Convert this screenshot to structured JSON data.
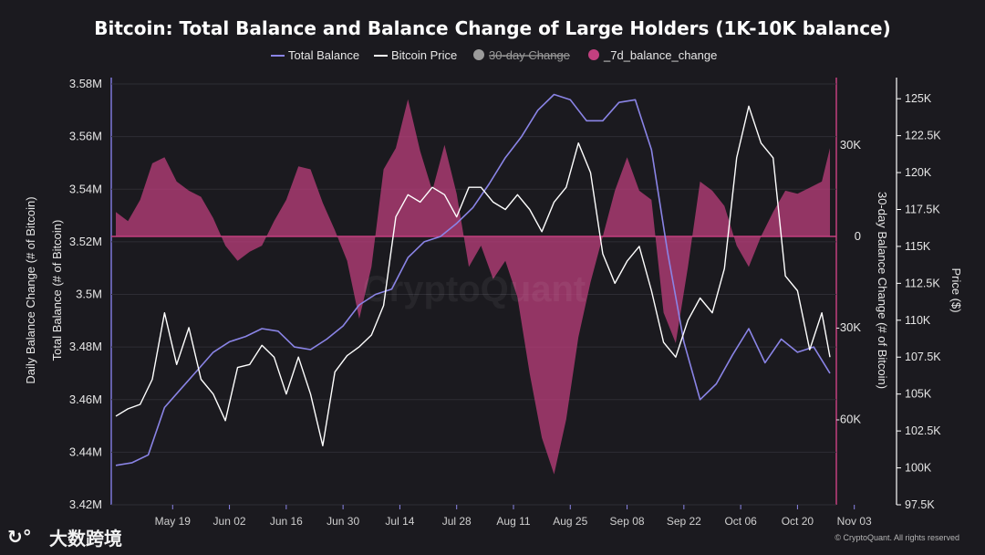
{
  "chart_data": {
    "type": "line",
    "title": "Bitcoin: Total Balance and Balance Change of Large Holders (1K-10K balance)",
    "legend": [
      {
        "name": "Total Balance",
        "color": "#8a84e6",
        "shape": "line",
        "hidden": false
      },
      {
        "name": "Bitcoin Price",
        "color": "#ffffff",
        "shape": "line",
        "hidden": false
      },
      {
        "name": "30-day Change",
        "color": "#9b9b9b",
        "shape": "dot",
        "hidden": true
      },
      {
        "name": "_7d_balance_change",
        "color": "#c2407f",
        "shape": "dot",
        "hidden": false
      }
    ],
    "x_tick_labels": [
      "May 19",
      "Jun 02",
      "Jun 16",
      "Jun 30",
      "Jul 14",
      "Jul 28",
      "Aug 11",
      "Aug 25",
      "Sep 08",
      "Sep 22",
      "Oct 06",
      "Oct 20",
      "Nov 03"
    ],
    "y_left": {
      "label": "Total Balance (# of Bitcoin)",
      "outer_label": "Daily Balance Change (# of Bitcoin)",
      "ticks": [
        "3.58M",
        "3.56M",
        "3.54M",
        "3.52M",
        "3.5M",
        "3.48M",
        "3.46M",
        "3.44M",
        "3.42M"
      ],
      "range": [
        3420000,
        3580000
      ]
    },
    "y_mid": {
      "label": "30-day Balance Change (# of Bitcoin)",
      "ticks": [
        "30K",
        "0",
        "-30K",
        "-60K"
      ],
      "range": [
        -88000,
        50000
      ]
    },
    "y_right": {
      "label": "Price ($)",
      "ticks": [
        "125K",
        "122.5K",
        "120K",
        "117.5K",
        "115K",
        "112.5K",
        "110K",
        "107.5K",
        "105K",
        "102.5K",
        "100K",
        "97.5K"
      ],
      "range": [
        97500,
        126000
      ]
    },
    "series": [
      {
        "name": "Total Balance",
        "color": "#8a84e6",
        "x_days": [
          0,
          4,
          8,
          12,
          16,
          20,
          24,
          28,
          32,
          36,
          40,
          44,
          48,
          52,
          56,
          60,
          64,
          68,
          72,
          76,
          80,
          84,
          88,
          92,
          96,
          100,
          104,
          108,
          112,
          116,
          120,
          124,
          128,
          132,
          136,
          140,
          144,
          148,
          152,
          156,
          160,
          164,
          168,
          172,
          176
        ],
        "values": [
          3435000,
          3436000,
          3439000,
          3457000,
          3464000,
          3471000,
          3478000,
          3482000,
          3484000,
          3487000,
          3486000,
          3480000,
          3479000,
          3483000,
          3488000,
          3496000,
          3500000,
          3502000,
          3514000,
          3520000,
          3522000,
          3527000,
          3533000,
          3542000,
          3552000,
          3560000,
          3570000,
          3576000,
          3574000,
          3566000,
          3566000,
          3573000,
          3574000,
          3555000,
          3516000,
          3482000,
          3460000,
          3466000,
          3477000,
          3487000,
          3474000,
          3483000,
          3478000,
          3480000,
          3470000
        ]
      },
      {
        "name": "Bitcoin Price",
        "color": "#ffffff",
        "x_days": [
          0,
          3,
          6,
          9,
          12,
          15,
          18,
          21,
          24,
          27,
          30,
          33,
          36,
          39,
          42,
          45,
          48,
          51,
          54,
          57,
          60,
          63,
          66,
          69,
          72,
          75,
          78,
          81,
          84,
          87,
          90,
          93,
          96,
          99,
          102,
          105,
          108,
          111,
          114,
          117,
          120,
          123,
          126,
          129,
          132,
          135,
          138,
          141,
          144,
          147,
          150,
          153,
          156,
          159,
          162,
          165,
          168,
          171,
          174,
          176
        ],
        "values": [
          103500,
          104000,
          104300,
          106000,
          110500,
          107000,
          109500,
          106000,
          105000,
          103200,
          106800,
          107000,
          108300,
          107500,
          105000,
          107500,
          105000,
          101500,
          106500,
          107600,
          108200,
          109000,
          111000,
          117000,
          118500,
          118000,
          119000,
          118500,
          117000,
          119000,
          119000,
          118000,
          117500,
          118500,
          117500,
          116000,
          118000,
          119000,
          122000,
          120000,
          114500,
          112500,
          114000,
          115000,
          112000,
          108500,
          107500,
          110000,
          111500,
          110500,
          113500,
          121000,
          124500,
          122000,
          121000,
          113000,
          112000,
          108000,
          110500,
          107500
        ]
      },
      {
        "name": "_7d_balance_change",
        "color": "#c2407f",
        "x_days": [
          0,
          3,
          6,
          9,
          12,
          15,
          18,
          21,
          24,
          27,
          30,
          33,
          36,
          39,
          42,
          45,
          48,
          51,
          54,
          57,
          60,
          63,
          66,
          69,
          72,
          75,
          78,
          81,
          84,
          87,
          90,
          93,
          96,
          99,
          102,
          105,
          108,
          111,
          114,
          117,
          120,
          123,
          126,
          129,
          132,
          135,
          138,
          141,
          144,
          147,
          150,
          153,
          156,
          159,
          162,
          165,
          168,
          171,
          174,
          176
        ],
        "values": [
          8000,
          5000,
          12000,
          24000,
          26000,
          18000,
          15000,
          13000,
          6000,
          -3000,
          -8000,
          -5000,
          -3000,
          5000,
          12000,
          23000,
          22000,
          11000,
          2000,
          -8000,
          -27000,
          -10000,
          22000,
          29000,
          45000,
          28000,
          15000,
          30000,
          14000,
          -10000,
          -3000,
          -14000,
          -8000,
          -20000,
          -45000,
          -66000,
          -78000,
          -60000,
          -33000,
          -15000,
          0,
          15000,
          26000,
          15000,
          12000,
          -25000,
          -35000,
          -10000,
          18000,
          15000,
          10000,
          -3000,
          -10000,
          0,
          8000,
          15000,
          14000,
          16000,
          18000,
          29000
        ]
      }
    ],
    "watermark": "CryptoQuant",
    "credit": "© CryptoQuant. All rights reserved",
    "brand": {
      "logo_text": "↻°",
      "name": "大数跨境"
    }
  }
}
